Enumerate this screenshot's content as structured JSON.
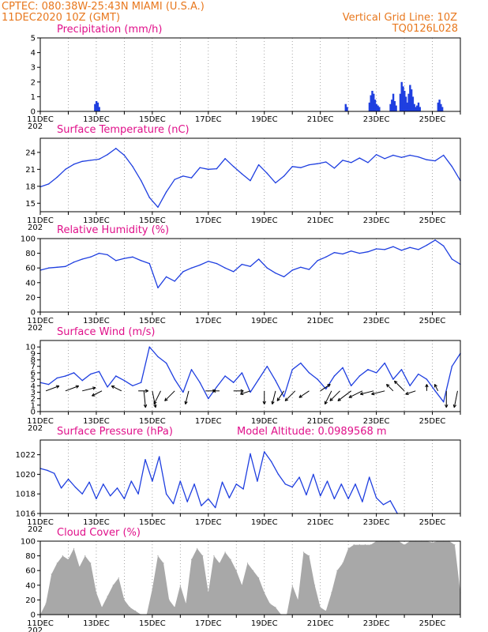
{
  "header": {
    "line1": "CPTEC:   080:38W-25:43N   MIAMI (U.S.A.)",
    "line2": "11DEC2020 10Z (GMT)",
    "grid_note": "Vertical Grid Line: 10Z",
    "code": "TQ0126L028"
  },
  "colors": {
    "header": "#e8781e",
    "title": "#e0108a",
    "line": "#1f3fe0",
    "cloud": "#a8a8a8",
    "grid": "#909090"
  },
  "chart_data": [
    {
      "id": "precip",
      "type": "bar",
      "title": "Precipitation (mm/h)",
      "x": [
        1.95,
        2.0,
        2.05,
        2.1,
        10.9,
        10.95,
        11.75,
        11.8,
        11.85,
        11.9,
        11.95,
        12.0,
        12.05,
        12.1,
        12.5,
        12.55,
        12.6,
        12.65,
        12.7,
        12.85,
        12.9,
        12.95,
        13.0,
        13.05,
        13.1,
        13.15,
        13.2,
        13.25,
        13.3,
        13.35,
        13.4,
        13.45,
        13.5,
        13.55,
        14.2,
        14.25,
        14.3,
        14.35
      ],
      "values": [
        0.5,
        0.7,
        0.6,
        0.3,
        0.5,
        0.3,
        0.6,
        1.1,
        1.4,
        1.2,
        0.8,
        0.5,
        0.4,
        0.3,
        0.5,
        0.8,
        1.2,
        0.7,
        0.4,
        1.2,
        2.0,
        1.7,
        1.4,
        1.0,
        0.6,
        1.2,
        1.8,
        1.5,
        1.0,
        0.5,
        0.3,
        0.4,
        0.6,
        0.3,
        0.6,
        0.8,
        0.5,
        0.3
      ],
      "ylim": [
        0,
        5
      ],
      "yticks": [
        0,
        1,
        2,
        3,
        4,
        5
      ]
    },
    {
      "id": "temp",
      "type": "line",
      "title": "Surface Temperature (nC)",
      "x": [
        0,
        0.3,
        0.6,
        0.9,
        1.2,
        1.5,
        1.8,
        2.1,
        2.4,
        2.7,
        3.0,
        3.3,
        3.6,
        3.9,
        4.2,
        4.5,
        4.8,
        5.1,
        5.4,
        5.7,
        6.0,
        6.3,
        6.6,
        6.9,
        7.2,
        7.5,
        7.8,
        8.1,
        8.4,
        8.7,
        9.0,
        9.3,
        9.6,
        9.9,
        10.2,
        10.5,
        10.8,
        11.1,
        11.4,
        11.7,
        12.0,
        12.3,
        12.6,
        12.9,
        13.2,
        13.5,
        13.8,
        14.1,
        14.4,
        14.7,
        15.0
      ],
      "values": [
        17.9,
        18.4,
        19.6,
        21.0,
        21.9,
        22.4,
        22.6,
        22.8,
        23.6,
        24.7,
        23.5,
        21.5,
        19.0,
        16.0,
        14.3,
        17.0,
        19.2,
        19.8,
        19.5,
        21.3,
        21.0,
        21.1,
        22.9,
        21.5,
        20.2,
        19.0,
        21.8,
        20.3,
        18.6,
        19.8,
        21.5,
        21.3,
        21.8,
        22.0,
        22.3,
        21.2,
        22.6,
        22.2,
        23.0,
        22.2,
        23.6,
        22.9,
        23.5,
        23.1,
        23.5,
        23.2,
        22.7,
        22.5,
        23.5,
        21.5,
        19.0
      ],
      "ylim": [
        13.5,
        26.5
      ],
      "yticks": [
        15,
        18,
        21,
        24
      ]
    },
    {
      "id": "rh",
      "type": "line",
      "title": "Relative Humidity (%)",
      "x": [
        0,
        0.3,
        0.6,
        0.9,
        1.2,
        1.5,
        1.8,
        2.1,
        2.4,
        2.7,
        3.0,
        3.3,
        3.6,
        3.9,
        4.2,
        4.5,
        4.8,
        5.1,
        5.4,
        5.7,
        6.0,
        6.3,
        6.6,
        6.9,
        7.2,
        7.5,
        7.8,
        8.1,
        8.4,
        8.7,
        9.0,
        9.3,
        9.6,
        9.9,
        10.2,
        10.5,
        10.8,
        11.1,
        11.4,
        11.7,
        12.0,
        12.3,
        12.6,
        12.9,
        13.2,
        13.5,
        13.8,
        14.1,
        14.4,
        14.7,
        15.0
      ],
      "values": [
        57,
        60,
        61,
        62,
        68,
        72,
        75,
        80,
        78,
        70,
        73,
        75,
        70,
        66,
        33,
        48,
        42,
        55,
        60,
        64,
        69,
        66,
        60,
        55,
        65,
        62,
        72,
        60,
        53,
        48,
        57,
        61,
        58,
        70,
        75,
        81,
        79,
        83,
        80,
        82,
        86,
        85,
        89,
        84,
        88,
        85,
        91,
        98,
        90,
        72,
        65
      ],
      "ylim": [
        0,
        100
      ],
      "yticks": [
        0,
        20,
        40,
        60,
        80,
        100
      ]
    },
    {
      "id": "wind",
      "type": "line",
      "title": "Surface Wind (m/s)",
      "x": [
        0,
        0.3,
        0.6,
        0.9,
        1.2,
        1.5,
        1.8,
        2.1,
        2.4,
        2.7,
        3.0,
        3.3,
        3.6,
        3.9,
        4.2,
        4.5,
        4.8,
        5.1,
        5.4,
        5.7,
        6.0,
        6.3,
        6.6,
        6.9,
        7.2,
        7.5,
        7.8,
        8.1,
        8.4,
        8.7,
        9.0,
        9.3,
        9.6,
        9.9,
        10.2,
        10.5,
        10.8,
        11.1,
        11.4,
        11.7,
        12.0,
        12.3,
        12.6,
        12.9,
        13.2,
        13.5,
        13.8,
        14.1,
        14.4,
        14.7,
        15.0
      ],
      "values": [
        4.5,
        4.2,
        5.2,
        5.5,
        6.0,
        4.8,
        5.8,
        6.2,
        3.8,
        5.5,
        4.8,
        4.0,
        4.5,
        10.0,
        8.5,
        7.5,
        5.0,
        3.0,
        6.5,
        4.5,
        2.0,
        3.8,
        5.5,
        4.5,
        6.0,
        3.0,
        5.0,
        7.0,
        4.8,
        2.3,
        6.5,
        7.5,
        6.0,
        5.0,
        3.5,
        5.5,
        6.8,
        4.0,
        5.5,
        6.5,
        6.0,
        7.5,
        5.0,
        6.5,
        4.0,
        5.8,
        5.0,
        3.2,
        1.5,
        7.0,
        9.0
      ],
      "ylim": [
        0,
        11
      ],
      "yticks": [
        0,
        1,
        2,
        3,
        4,
        5,
        6,
        7,
        8,
        9,
        10
      ]
    },
    {
      "id": "pres",
      "type": "line",
      "title": "Surface Pressure (hPa)",
      "subtitle": "Model Altitude: 0.0989568 m",
      "x": [
        0,
        0.25,
        0.5,
        0.75,
        1.0,
        1.25,
        1.5,
        1.75,
        2.0,
        2.25,
        2.5,
        2.75,
        3.0,
        3.25,
        3.5,
        3.75,
        4.0,
        4.25,
        4.5,
        4.75,
        5.0,
        5.25,
        5.5,
        5.75,
        6.0,
        6.25,
        6.5,
        6.75,
        7.0,
        7.25,
        7.5,
        7.75,
        8.0,
        8.25,
        8.5,
        8.75,
        9.0,
        9.25,
        9.5,
        9.75,
        10.0,
        10.25,
        10.5,
        10.75,
        11.0,
        11.25,
        11.5,
        11.75,
        12.0,
        12.25,
        12.5,
        12.75
      ],
      "values": [
        1020.6,
        1020.4,
        1020.1,
        1018.6,
        1019.5,
        1018.7,
        1018.0,
        1019.2,
        1017.5,
        1019.0,
        1017.8,
        1018.6,
        1017.5,
        1019.3,
        1018.0,
        1021.5,
        1019.3,
        1021.8,
        1018.0,
        1017.0,
        1019.3,
        1017.2,
        1019.0,
        1016.8,
        1017.5,
        1016.6,
        1019.2,
        1017.6,
        1019.0,
        1018.5,
        1022.1,
        1019.3,
        1022.3,
        1021.3,
        1020.0,
        1019.0,
        1018.7,
        1019.7,
        1017.9,
        1020.0,
        1017.8,
        1019.3,
        1017.5,
        1019.0,
        1017.5,
        1019.0,
        1017.2,
        1019.7,
        1017.6,
        1016.9,
        1017.3,
        1016.0
      ],
      "ylim": [
        1016,
        1023.5
      ],
      "yticks": [
        1016,
        1018,
        1020,
        1022
      ]
    },
    {
      "id": "cloud",
      "type": "area",
      "title": "Cloud Cover (%)",
      "x": [
        0,
        0.2,
        0.4,
        0.6,
        0.8,
        1.0,
        1.2,
        1.4,
        1.6,
        1.8,
        2.0,
        2.2,
        2.4,
        2.6,
        2.8,
        3.0,
        3.2,
        3.4,
        3.6,
        3.8,
        4.0,
        4.2,
        4.4,
        4.6,
        4.8,
        5.0,
        5.2,
        5.4,
        5.6,
        5.8,
        6.0,
        6.2,
        6.4,
        6.6,
        6.8,
        7.0,
        7.2,
        7.4,
        7.6,
        7.8,
        8.0,
        8.2,
        8.4,
        8.6,
        8.8,
        9.0,
        9.2,
        9.4,
        9.6,
        9.8,
        10.0,
        10.2,
        10.4,
        10.6,
        10.8,
        11.0,
        11.2,
        11.4,
        11.6,
        11.8,
        12.0,
        12.2,
        12.4,
        12.6,
        12.8,
        13.0,
        13.2,
        13.4,
        13.6,
        13.8,
        14.0,
        14.2,
        14.4,
        14.6,
        14.8,
        15.0
      ],
      "values": [
        0,
        15,
        55,
        70,
        80,
        75,
        90,
        65,
        80,
        70,
        30,
        10,
        25,
        40,
        50,
        20,
        10,
        5,
        0,
        0,
        35,
        80,
        70,
        20,
        10,
        40,
        15,
        75,
        90,
        80,
        30,
        80,
        70,
        85,
        75,
        60,
        40,
        70,
        60,
        50,
        30,
        15,
        10,
        0,
        0,
        40,
        20,
        85,
        80,
        40,
        10,
        5,
        30,
        60,
        70,
        90,
        95,
        95,
        95,
        95,
        100,
        100,
        100,
        100,
        100,
        95,
        100,
        100,
        100,
        100,
        98,
        100,
        100,
        100,
        95,
        30
      ],
      "ylim": [
        0,
        100
      ],
      "yticks": [
        0,
        20,
        40,
        60,
        80,
        100
      ]
    }
  ],
  "wind_arrows": [
    {
      "x": 0.2,
      "u": 4,
      "v": 1.5
    },
    {
      "x": 0.9,
      "u": 4,
      "v": 1.5
    },
    {
      "x": 1.5,
      "u": 4,
      "v": 1
    },
    {
      "x": 2.2,
      "u": -3,
      "v": -1.5
    },
    {
      "x": 2.9,
      "u": -3,
      "v": 1.5
    },
    {
      "x": 3.5,
      "u": 3,
      "v": 0
    },
    {
      "x": 3.7,
      "u": 0.5,
      "v": -5
    },
    {
      "x": 4.0,
      "u": 1,
      "v": -5
    },
    {
      "x": 4.3,
      "u": -2,
      "v": -4
    },
    {
      "x": 4.8,
      "u": -3,
      "v": -3
    },
    {
      "x": 5.3,
      "u": -1,
      "v": -4
    },
    {
      "x": 5.9,
      "u": 3,
      "v": 0
    },
    {
      "x": 6.4,
      "u": -2,
      "v": 0
    },
    {
      "x": 6.9,
      "u": 3,
      "v": 0
    },
    {
      "x": 7.5,
      "u": -3,
      "v": -1
    },
    {
      "x": 8.0,
      "u": 0,
      "v": -4
    },
    {
      "x": 8.4,
      "u": -1,
      "v": -4
    },
    {
      "x": 8.7,
      "u": -2,
      "v": -3
    },
    {
      "x": 9.1,
      "u": -3,
      "v": -3
    },
    {
      "x": 9.6,
      "u": -3,
      "v": -2
    },
    {
      "x": 10.0,
      "u": 3,
      "v": 2
    },
    {
      "x": 10.4,
      "u": -2,
      "v": -4
    },
    {
      "x": 10.7,
      "u": -3,
      "v": -3
    },
    {
      "x": 11.1,
      "u": -4,
      "v": -3
    },
    {
      "x": 11.5,
      "u": -4,
      "v": -2
    },
    {
      "x": 11.9,
      "u": -4,
      "v": -1
    },
    {
      "x": 12.3,
      "u": -4,
      "v": -1
    },
    {
      "x": 12.6,
      "u": -2,
      "v": 2
    },
    {
      "x": 13.0,
      "u": -3,
      "v": 3
    },
    {
      "x": 13.4,
      "u": -3,
      "v": -1
    },
    {
      "x": 13.8,
      "u": 0,
      "v": 2
    },
    {
      "x": 14.2,
      "u": -1,
      "v": 2
    },
    {
      "x": 14.5,
      "u": 0,
      "v": -5
    },
    {
      "x": 14.9,
      "u": -1,
      "v": -5
    }
  ],
  "x_labels": [
    "11DEC",
    "13DEC",
    "15DEC",
    "17DEC",
    "19DEC",
    "21DEC",
    "23DEC",
    "25DEC"
  ],
  "year_fragment": "202"
}
